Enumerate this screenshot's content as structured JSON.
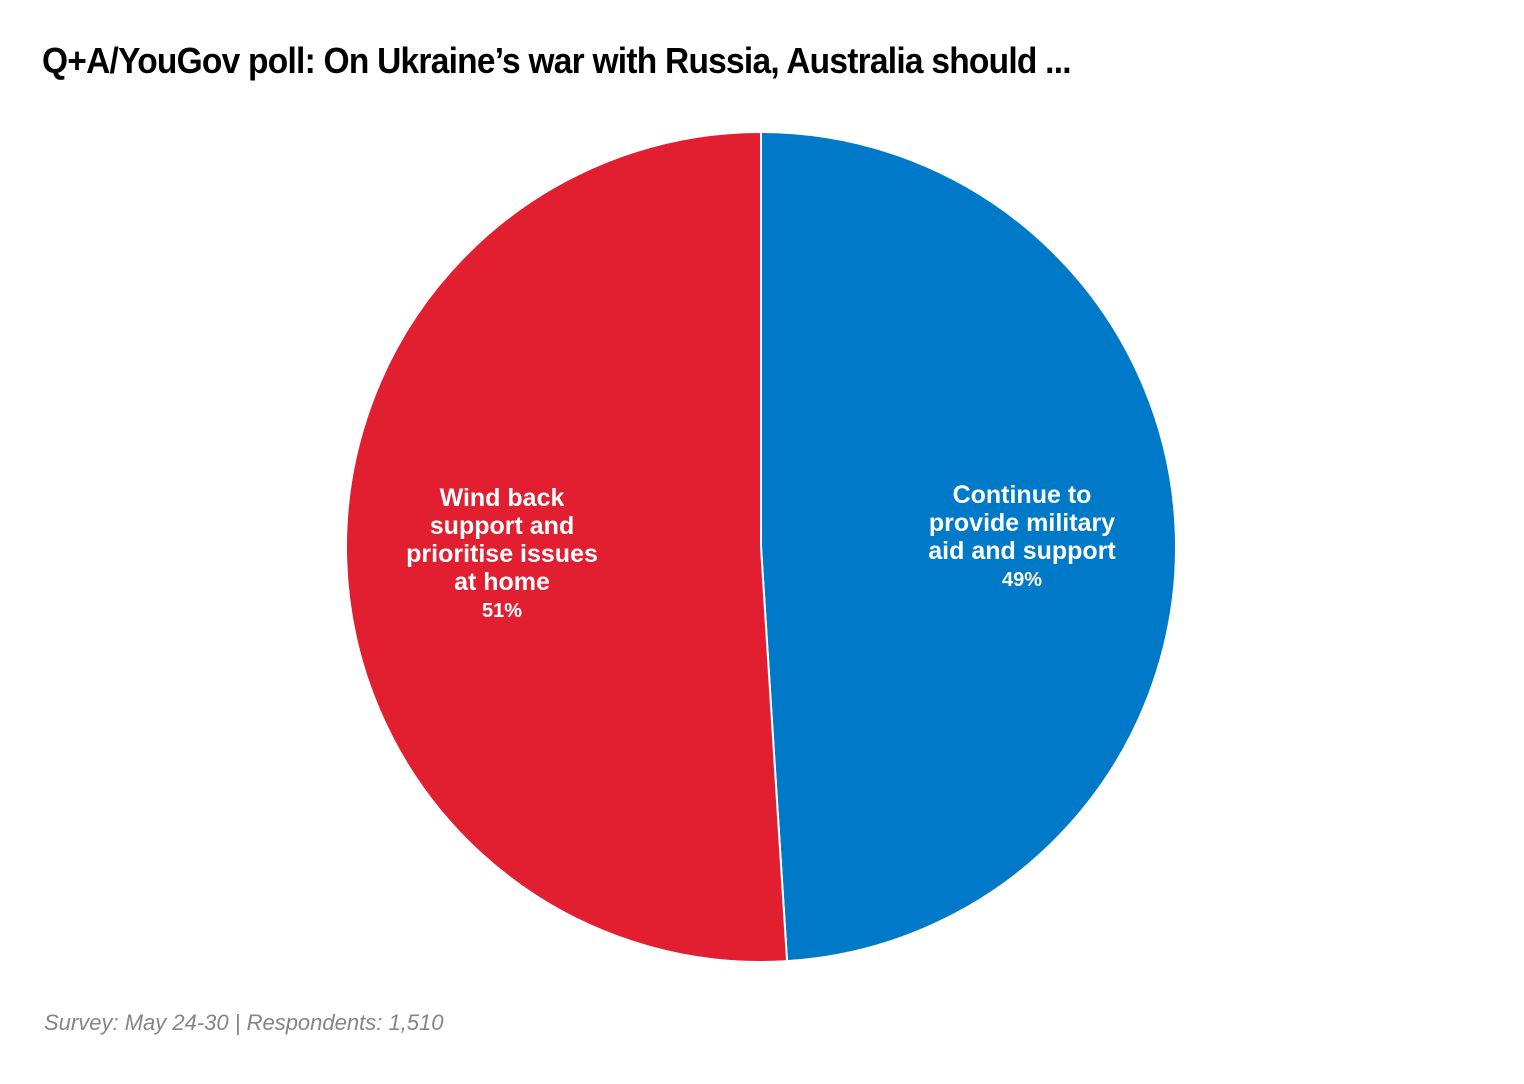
{
  "title": "Q+A/YouGov poll: On Ukraine’s war with Russia, Australia should ...",
  "footer": "Survey: May 24-30 | Respondents: 1,510",
  "colors": {
    "continue": "#0079c8",
    "wind_back": "#e11f30",
    "background": "#ffffff",
    "title": "#000000",
    "footer": "#858585"
  },
  "slices": [
    {
      "label_lines": [
        "Continue to",
        "provide military",
        "aid and support"
      ],
      "pct_label": "49%",
      "value": 49,
      "color": "#0079c8"
    },
    {
      "label_lines": [
        "Wind back",
        "support and",
        "prioritise issues",
        "at home"
      ],
      "pct_label": "51%",
      "value": 51,
      "color": "#e11f30"
    }
  ],
  "chart_data": {
    "type": "pie",
    "title": "Q+A/YouGov poll: On Ukraine’s war with Russia, Australia should ...",
    "categories": [
      "Continue to provide military aid and support",
      "Wind back support and prioritise issues at home"
    ],
    "values": [
      49,
      51
    ],
    "unit": "%",
    "colors": [
      "#0079c8",
      "#e11f30"
    ],
    "start_angle": "top, clockwise",
    "legend": "none (direct labels)",
    "annotation": "Survey: May 24-30 | Respondents: 1,510"
  }
}
